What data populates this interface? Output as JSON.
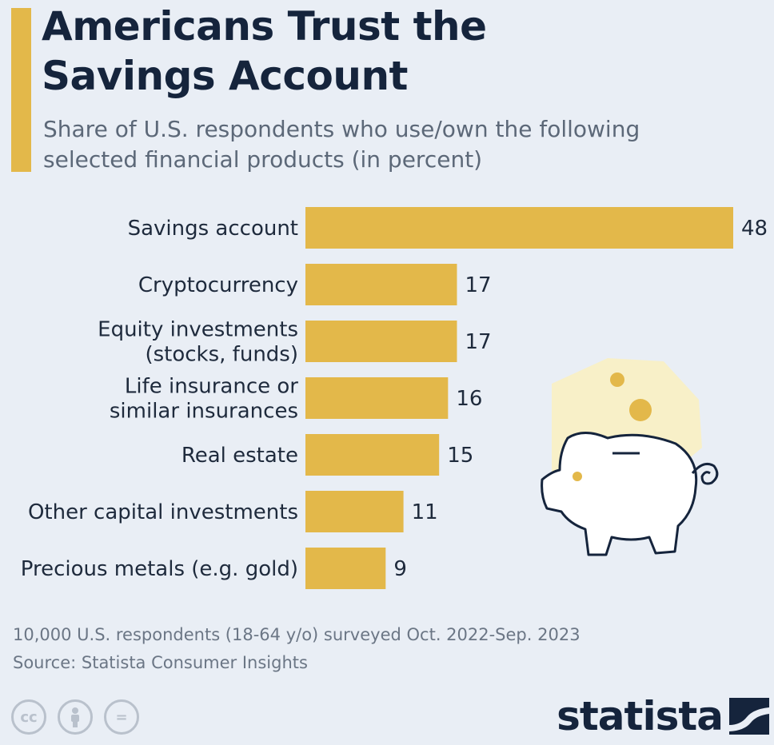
{
  "header": {
    "title_line1": "Americans Trust the",
    "title_line2": "Savings Account",
    "subtitle_line1": "Share of U.S. respondents who use/own the following",
    "subtitle_line2": "selected financial products (in percent)"
  },
  "colors": {
    "bar": "#e3b84a",
    "accent": "#e3b84a",
    "text": "#1e2a3c",
    "background": "#e9eef5"
  },
  "chart_data": {
    "type": "bar",
    "orientation": "horizontal",
    "title": "Americans Trust the Savings Account",
    "subtitle": "Share of U.S. respondents who use/own the following selected financial products (in percent)",
    "categories": [
      [
        "Savings account"
      ],
      [
        "Cryptocurrency"
      ],
      [
        "Equity investments",
        "(stocks, funds)"
      ],
      [
        "Life insurance or",
        "similar insurances"
      ],
      [
        "Real estate"
      ],
      [
        "Other capital investments"
      ],
      [
        "Precious metals (e.g. gold)"
      ]
    ],
    "values": [
      48,
      17,
      17,
      16,
      15,
      11,
      9
    ],
    "xlim": [
      0,
      48
    ],
    "grid": false,
    "legend": "none"
  },
  "footer": {
    "survey_note": "10,000 U.S. respondents (18-64 y/o) surveyed Oct. 2022-Sep. 2023",
    "source": "Source: Statista Consumer Insights",
    "license_icons": [
      "cc-icon",
      "attribution-icon",
      "no-derivatives-icon"
    ],
    "cc_glyph": "cc",
    "nd_glyph": "=",
    "brand": "statista"
  }
}
